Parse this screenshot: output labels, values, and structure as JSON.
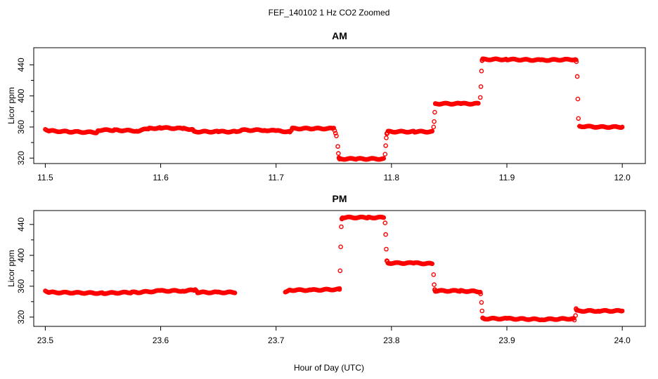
{
  "figure": {
    "title": "FEF_140102  1 Hz CO2 Zoomed",
    "xlabel": "Hour of Day (UTC)"
  },
  "colors": {
    "points": "#ff0000",
    "axes": "#000000",
    "background": "#ffffff"
  },
  "chart_data": [
    {
      "type": "scatter",
      "title": "AM",
      "ylabel": "Licor ppm",
      "xlim": [
        11.49,
        12.02
      ],
      "ylim": [
        313,
        462
      ],
      "xticks": [
        11.5,
        11.6,
        11.7,
        11.8,
        11.9,
        12.0
      ],
      "xtick_labels": [
        "11.5",
        "11.6",
        "11.7",
        "11.8",
        "11.9",
        "12.0"
      ],
      "yticks": [
        320,
        360,
        400,
        440
      ],
      "ytick_labels": [
        "320",
        "360",
        "400",
        "440"
      ],
      "grid": false,
      "series": [
        {
          "x": [
            11.5,
            11.504,
            11.52,
            11.545,
            11.546,
            11.56,
            11.58,
            11.59,
            11.6,
            11.62,
            11.628,
            11.629,
            11.65,
            11.665,
            11.67,
            11.69,
            11.7,
            11.712,
            11.714,
            11.73,
            11.75,
            11.753,
            11.7535,
            11.754,
            11.7545,
            11.755,
            11.756,
            11.77,
            11.794,
            11.7945,
            11.795,
            11.7955,
            11.796,
            11.797,
            11.82,
            11.836,
            11.8365,
            11.837,
            11.8375,
            11.838,
            11.86,
            11.876,
            11.877,
            11.8775,
            11.878,
            11.8785,
            11.879,
            11.9,
            11.93,
            11.96,
            11.9605,
            11.961,
            11.9615,
            11.962,
            11.963,
            11.98,
            12.0
          ],
          "y": [
            357,
            355,
            354,
            353,
            356,
            356,
            355,
            358,
            359,
            358,
            357,
            354,
            354,
            354,
            356,
            356,
            355,
            354,
            358,
            358,
            358,
            345,
            335,
            326,
            320,
            319,
            319,
            319,
            319,
            325,
            336,
            346,
            352,
            354,
            354,
            354,
            360,
            367,
            379,
            390,
            390,
            390,
            398,
            412,
            432,
            446,
            447,
            447,
            446,
            447,
            442,
            425,
            396,
            371,
            361,
            360,
            360
          ]
        }
      ]
    },
    {
      "type": "scatter",
      "title": "PM",
      "ylabel": "Licor ppm",
      "xlim": [
        23.49,
        24.02
      ],
      "ylim": [
        308,
        458
      ],
      "xticks": [
        23.5,
        23.6,
        23.7,
        23.8,
        23.9,
        24.0
      ],
      "xtick_labels": [
        "23.5",
        "23.6",
        "23.7",
        "23.8",
        "23.9",
        "24.0"
      ],
      "yticks": [
        320,
        360,
        400,
        440
      ],
      "ytick_labels": [
        "320",
        "360",
        "400",
        "440"
      ],
      "grid": false,
      "series": [
        {
          "x": [
            23.5,
            23.504,
            23.55,
            23.575,
            23.58,
            23.6,
            23.62,
            23.63,
            23.632,
            23.65,
            23.665,
            23.708,
            23.71,
            23.712,
            23.73,
            23.755,
            23.755,
            23.7555,
            23.756,
            23.7565,
            23.757,
            23.758,
            23.78,
            23.794,
            23.7945,
            23.795,
            23.7955,
            23.796,
            23.797,
            23.82,
            23.836,
            23.8365,
            23.837,
            23.8375,
            23.838,
            23.86,
            23.877,
            23.8775,
            23.878,
            23.8785,
            23.879,
            23.88,
            23.9,
            23.93,
            23.958,
            23.959,
            23.9595,
            23.96,
            23.961,
            23.98,
            24.0
          ],
          "y": [
            354,
            352,
            351,
            352,
            352,
            354,
            354,
            355,
            352,
            352,
            352,
            352,
            354,
            355,
            355,
            356,
            359,
            380,
            411,
            437,
            447,
            449,
            449,
            449,
            442,
            427,
            408,
            393,
            390,
            390,
            389,
            375,
            362,
            355,
            354,
            354,
            353,
            348,
            339,
            328,
            319,
            318,
            318,
            317,
            318,
            313,
            322,
            331,
            328,
            328,
            328
          ]
        },
        {
          "x_gap": [
            23.665,
            23.708
          ]
        }
      ]
    }
  ]
}
